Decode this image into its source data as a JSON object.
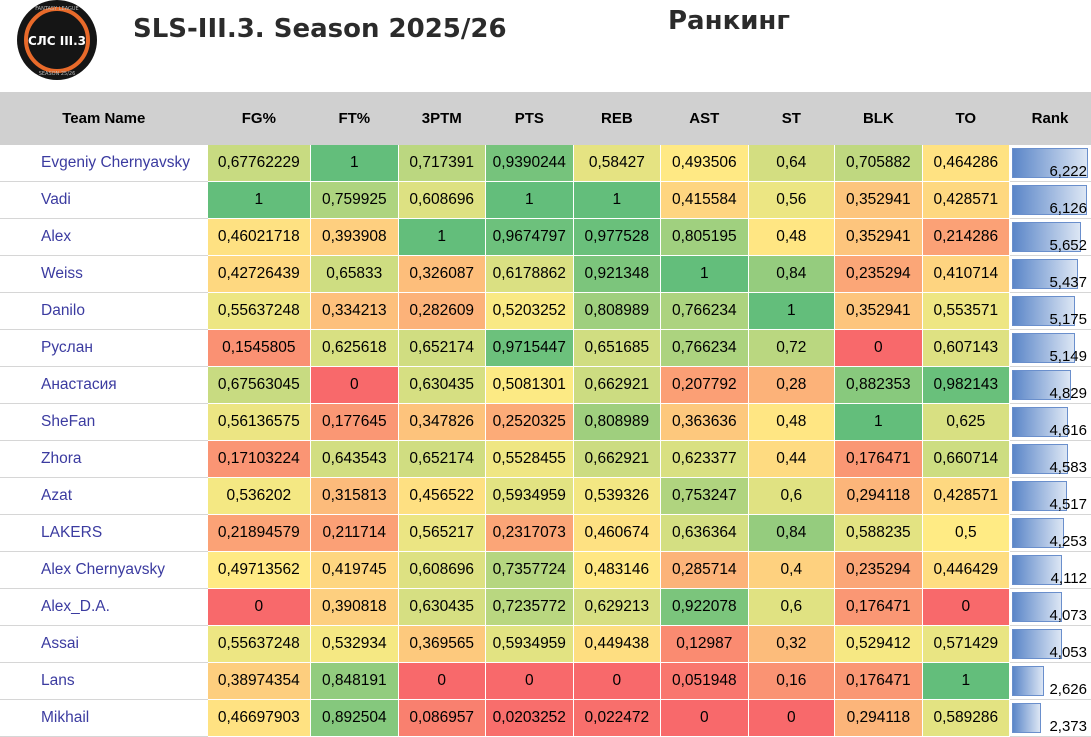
{
  "header": {
    "title": "SLS-III.3. Season 2025/26",
    "subtitle": "Ранкинг",
    "logo": {
      "main_text": "СЛС III.3",
      "ring_top": "FANTASY LEAGUE",
      "ring_bottom": "SEASON 25/26"
    }
  },
  "table": {
    "columns": [
      "Team Name",
      "FG%",
      "FT%",
      "3PTM",
      "PTS",
      "REB",
      "AST",
      "ST",
      "BLK",
      "TO",
      "Rank"
    ],
    "rows": [
      {
        "team": "Evgeniy Chernyavsky",
        "cells": [
          "0,67762229",
          "1",
          "0,717391",
          "0,9390244",
          "0,58427",
          "0,493506",
          "0,64",
          "0,705882",
          "0,464286"
        ],
        "rank": "6,222",
        "rank_value": 6.222
      },
      {
        "team": "Vadi",
        "cells": [
          "1",
          "0,759925",
          "0,608696",
          "1",
          "1",
          "0,415584",
          "0,56",
          "0,352941",
          "0,428571"
        ],
        "rank": "6,126",
        "rank_value": 6.126
      },
      {
        "team": "Alex",
        "cells": [
          "0,46021718",
          "0,393908",
          "1",
          "0,9674797",
          "0,977528",
          "0,805195",
          "0,48",
          "0,352941",
          "0,214286"
        ],
        "rank": "5,652",
        "rank_value": 5.652
      },
      {
        "team": "Weiss",
        "cells": [
          "0,42726439",
          "0,65833",
          "0,326087",
          "0,6178862",
          "0,921348",
          "1",
          "0,84",
          "0,235294",
          "0,410714"
        ],
        "rank": "5,437",
        "rank_value": 5.437
      },
      {
        "team": "Danilo",
        "cells": [
          "0,55637248",
          "0,334213",
          "0,282609",
          "0,5203252",
          "0,808989",
          "0,766234",
          "1",
          "0,352941",
          "0,553571"
        ],
        "rank": "5,175",
        "rank_value": 5.175
      },
      {
        "team": "Руслан",
        "cells": [
          "0,1545805",
          "0,625618",
          "0,652174",
          "0,9715447",
          "0,651685",
          "0,766234",
          "0,72",
          "0",
          "0,607143"
        ],
        "rank": "5,149",
        "rank_value": 5.149
      },
      {
        "team": "Анастасия",
        "cells": [
          "0,67563045",
          "0",
          "0,630435",
          "0,5081301",
          "0,662921",
          "0,207792",
          "0,28",
          "0,882353",
          "0,982143"
        ],
        "rank": "4,829",
        "rank_value": 4.829
      },
      {
        "team": "SheFan",
        "cells": [
          "0,56136575",
          "0,177645",
          "0,347826",
          "0,2520325",
          "0,808989",
          "0,363636",
          "0,48",
          "1",
          "0,625"
        ],
        "rank": "4,616",
        "rank_value": 4.616
      },
      {
        "team": "Zhora",
        "cells": [
          "0,17103224",
          "0,643543",
          "0,652174",
          "0,5528455",
          "0,662921",
          "0,623377",
          "0,44",
          "0,176471",
          "0,660714"
        ],
        "rank": "4,583",
        "rank_value": 4.583
      },
      {
        "team": "Azat",
        "cells": [
          "0,536202",
          "0,315813",
          "0,456522",
          "0,5934959",
          "0,539326",
          "0,753247",
          "0,6",
          "0,294118",
          "0,428571"
        ],
        "rank": "4,517",
        "rank_value": 4.517
      },
      {
        "team": "LAKERS",
        "cells": [
          "0,21894579",
          "0,211714",
          "0,565217",
          "0,2317073",
          "0,460674",
          "0,636364",
          "0,84",
          "0,588235",
          "0,5"
        ],
        "rank": "4,253",
        "rank_value": 4.253
      },
      {
        "team": "Alex Chernyavsky",
        "cells": [
          "0,49713562",
          "0,419745",
          "0,608696",
          "0,7357724",
          "0,483146",
          "0,285714",
          "0,4",
          "0,235294",
          "0,446429"
        ],
        "rank": "4,112",
        "rank_value": 4.112
      },
      {
        "team": "Alex_D.A.",
        "cells": [
          "0",
          "0,390818",
          "0,630435",
          "0,7235772",
          "0,629213",
          "0,922078",
          "0,6",
          "0,176471",
          "0"
        ],
        "rank": "4,073",
        "rank_value": 4.073
      },
      {
        "team": "Assai",
        "cells": [
          "0,55637248",
          "0,532934",
          "0,369565",
          "0,5934959",
          "0,449438",
          "0,12987",
          "0,32",
          "0,529412",
          "0,571429"
        ],
        "rank": "4,053",
        "rank_value": 4.053
      },
      {
        "team": "Lans",
        "cells": [
          "0,38974354",
          "0,848191",
          "0",
          "0",
          "0",
          "0,051948",
          "0,16",
          "0,176471",
          "1"
        ],
        "rank": "2,626",
        "rank_value": 2.626
      },
      {
        "team": "Mikhail",
        "cells": [
          "0,46697903",
          "0,892504",
          "0,086957",
          "0,0203252",
          "0,022472",
          "0",
          "0",
          "0,294118",
          "0,589286"
        ],
        "rank": "2,373",
        "rank_value": 2.373
      }
    ]
  },
  "colors": {
    "scale_low": "#f8696b",
    "scale_mid": "#ffeb84",
    "scale_high": "#63be7b",
    "header_bg": "#d0d0d0",
    "team_text": "#3b3ba0",
    "rank_bar": "#5b86c8"
  }
}
